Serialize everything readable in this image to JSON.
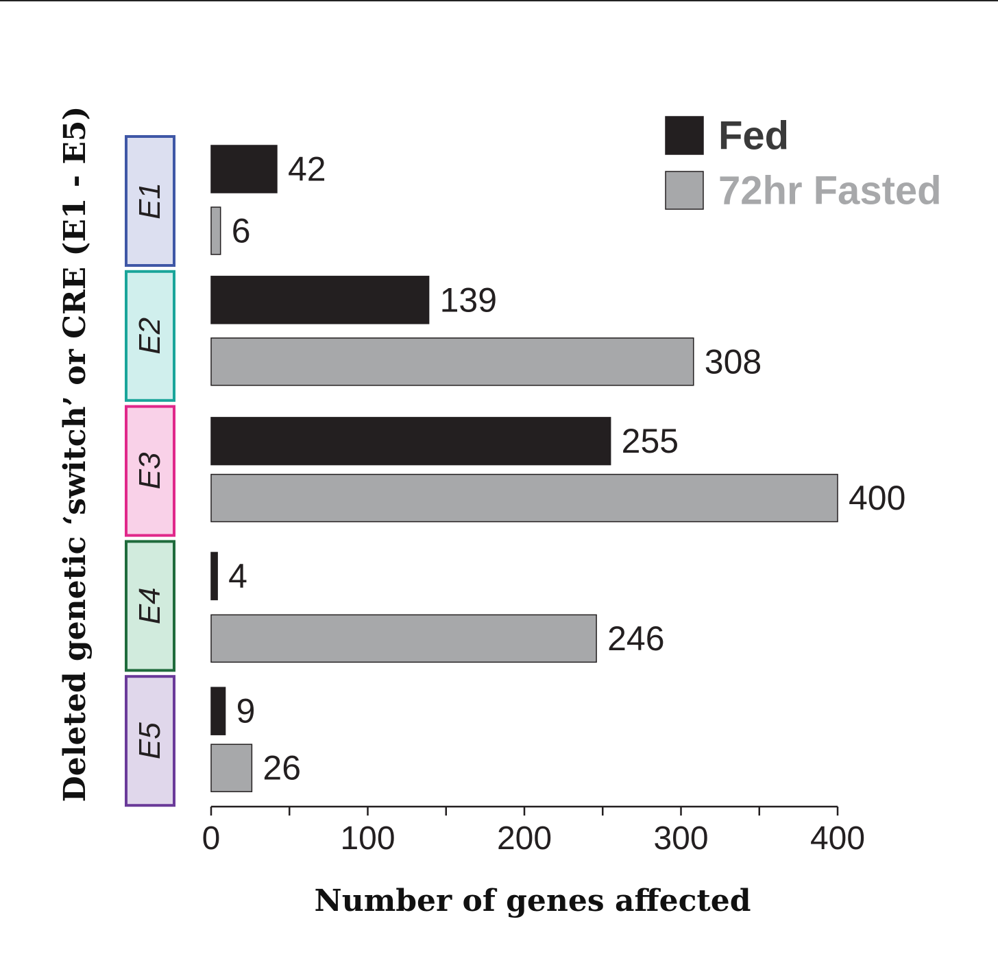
{
  "chart_data": {
    "type": "bar",
    "orientation": "horizontal",
    "title": "",
    "xlabel": "Number of genes affected",
    "ylabel": "Deleted genetic ‘switch’ or CRE (E1 - E5)",
    "xlim": [
      0,
      400
    ],
    "xticks": [
      0,
      100,
      200,
      300,
      400
    ],
    "categories": [
      "E1",
      "E2",
      "E3",
      "E4",
      "E5"
    ],
    "category_colors": {
      "E1": {
        "border": "#3f57a6",
        "fill": "#dcdff0"
      },
      "E2": {
        "border": "#1aa59a",
        "fill": "#d0efed"
      },
      "E3": {
        "border": "#e0288a",
        "fill": "#f9d1e8"
      },
      "E4": {
        "border": "#1f6b3c",
        "fill": "#d1ebdd"
      },
      "E5": {
        "border": "#6a3a99",
        "fill": "#e0d7eb"
      }
    },
    "series": [
      {
        "name": "Fed",
        "color": "#231f20",
        "values": [
          42,
          139,
          255,
          4,
          9
        ]
      },
      {
        "name": "72hr Fasted",
        "color": "#a7a8aa",
        "values": [
          6,
          308,
          400,
          246,
          26
        ]
      }
    ],
    "legend": {
      "position": "top-right",
      "entries": [
        {
          "label": "Fed",
          "swatch": "#231f20",
          "text_color": "#3a3a3a"
        },
        {
          "label": "72hr Fasted",
          "swatch": "#a7a8aa",
          "text_color": "#a7a8aa"
        }
      ]
    },
    "grid": false
  }
}
